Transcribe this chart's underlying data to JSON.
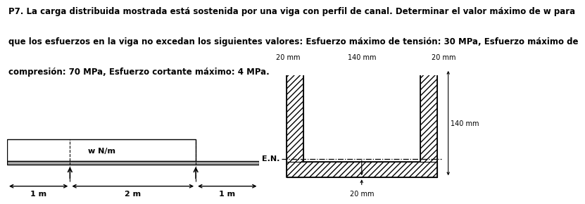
{
  "title_line1": "P7. La carga distribuida mostrada está sostenida por una viga con perfil de canal. Determinar el valor máximo de w para",
  "title_line2": "que los esfuerzos en la viga no excedan los siguientes valores: Esfuerzo máximo de tensión: 30 MPa, Esfuerzo máximo de",
  "title_line3": "compresión: 70 MPa, Esfuerzo cortante máximo: 4 MPa.",
  "beam_label": "w N/m",
  "dim_1m_left": "1 m",
  "dim_2m": "2 m",
  "dim_1m_right": "1 m",
  "cross_20mm_left": "20 mm",
  "cross_140mm": "140 mm",
  "cross_20mm_right": "20 mm",
  "cross_140mm_height": "140 mm",
  "cross_20mm_bottom": "20 mm",
  "en_label": "E.N.",
  "bg_color": "#ffffff",
  "text_color": "#000000",
  "title_fontsize": 8.5,
  "label_fontsize": 8.0,
  "small_fontsize": 7.0
}
